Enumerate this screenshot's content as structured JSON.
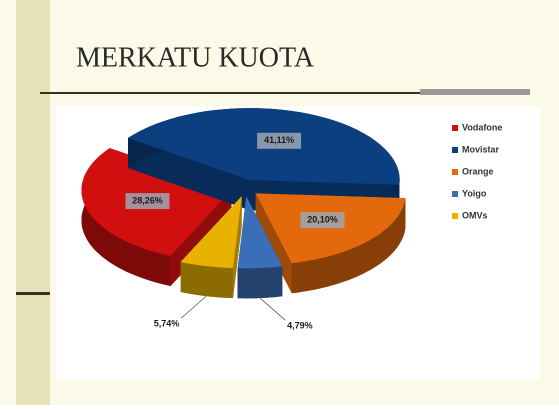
{
  "chart_data": {
    "type": "pie",
    "title": "MERKATU KUOTA",
    "categories": [
      "Vodafone",
      "Movistar",
      "Orange",
      "Yoigo",
      "OMVs"
    ],
    "values": [
      28.26,
      41.11,
      20.1,
      4.79,
      5.74
    ],
    "value_labels": [
      "28,26%",
      "41,11%",
      "20,10%",
      "4,79%",
      "5,74%"
    ],
    "colors": [
      "#d10f0f",
      "#0c3f80",
      "#e3690c",
      "#3a6fb8",
      "#e9b200"
    ],
    "legend": "right"
  }
}
